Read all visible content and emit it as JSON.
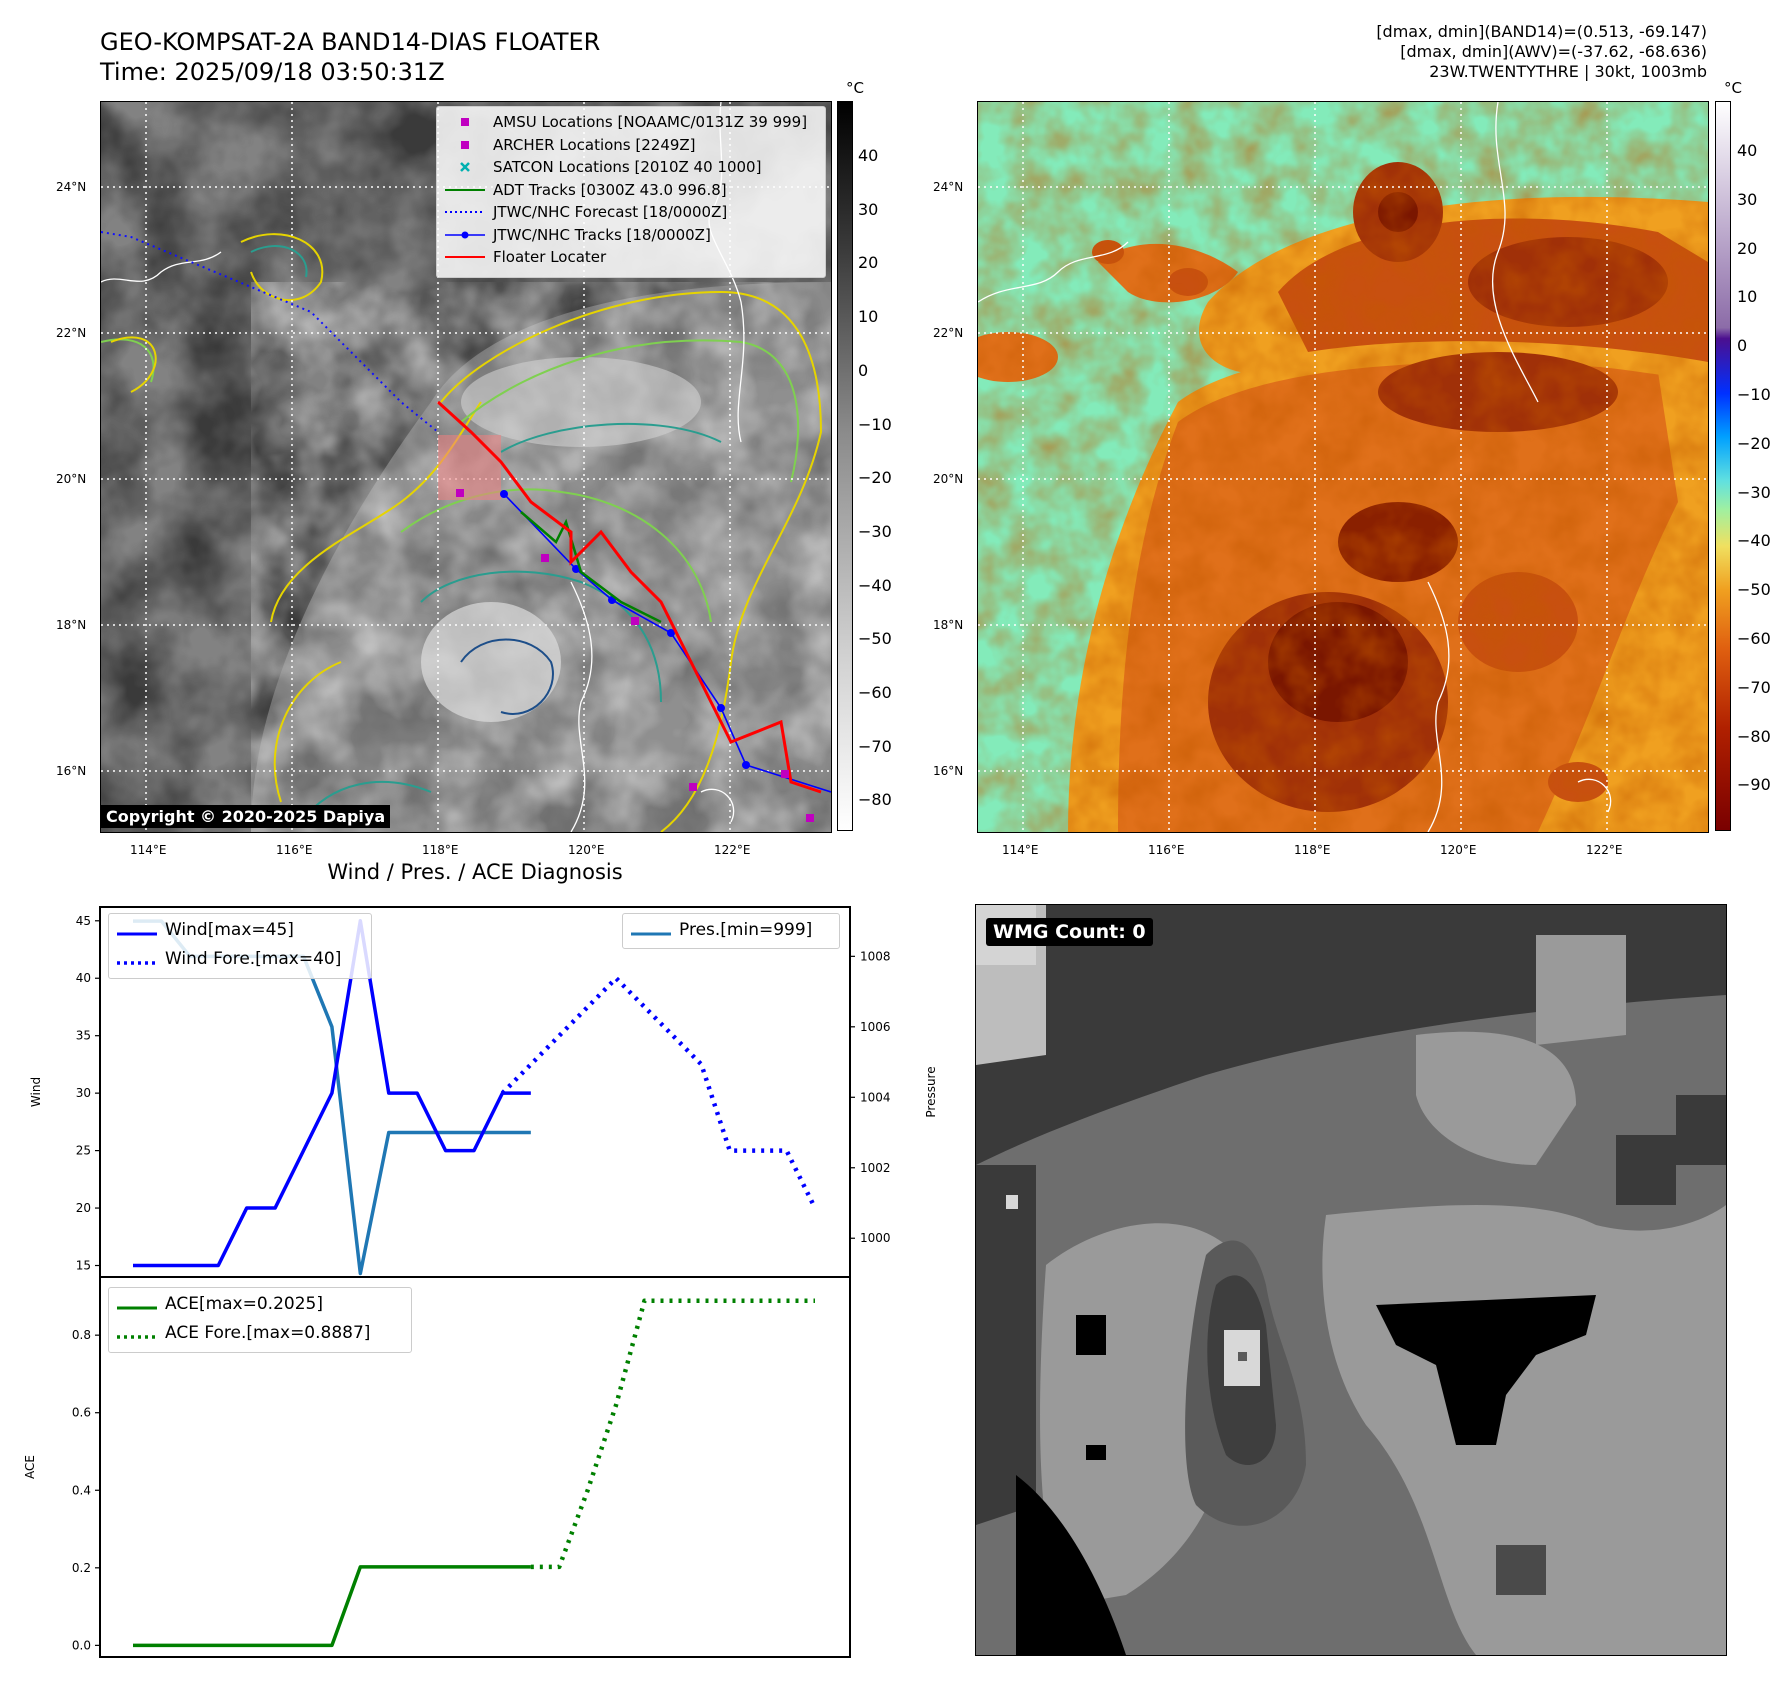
{
  "header": {
    "title_line1": "GEO-KOMPSAT-2A BAND14-DIAS FLOATER",
    "title_line2": "Time: 2025/09/18 03:50:31Z",
    "info_line1": "[dmax, dmin](BAND14)=(0.513, -69.147)",
    "info_line2": "[dmax, dmin](AWV)=(-37.62, -68.636)",
    "info_line3": "23W.TWENTYTHRE | 30kt, 1003mb"
  },
  "map_left": {
    "unit": "°C",
    "lat_labels": [
      "24°N",
      "22°N",
      "20°N",
      "18°N",
      "16°N"
    ],
    "lon_labels": [
      "114°E",
      "116°E",
      "118°E",
      "120°E",
      "122°E"
    ],
    "colorbar_ticks": [
      "40",
      "30",
      "20",
      "10",
      "0",
      "−10",
      "−20",
      "−30",
      "−40",
      "−50",
      "−60",
      "−70",
      "−80"
    ],
    "copyright": "Copyright © 2020-2025 Dapiya",
    "legend": [
      {
        "label": "AMSU Locations [NOAAMC/0131Z 39 999]",
        "color": "#c000c0",
        "symbol": "square"
      },
      {
        "label": "ARCHER Locations [2249Z]",
        "color": "#c000c0",
        "symbol": "square"
      },
      {
        "label": "SATCON Locations [2010Z 40 1000]",
        "color": "#00b0b0",
        "symbol": "x"
      },
      {
        "label": "ADT Tracks [0300Z 43.0 996.8]",
        "color": "#008000",
        "symbol": "line"
      },
      {
        "label": "JTWC/NHC Forecast [18/0000Z]",
        "color": "#0000ff",
        "symbol": "dotted"
      },
      {
        "label": "JTWC/NHC Tracks [18/0000Z]",
        "color": "#0000ff",
        "symbol": "line-dot"
      },
      {
        "label": "Floater Locater",
        "color": "#ff0000",
        "symbol": "line"
      }
    ]
  },
  "map_right": {
    "unit": "°C",
    "lat_labels": [
      "24°N",
      "22°N",
      "20°N",
      "18°N",
      "16°N"
    ],
    "lon_labels": [
      "114°E",
      "116°E",
      "118°E",
      "120°E",
      "122°E"
    ],
    "colorbar_ticks": [
      "40",
      "30",
      "20",
      "10",
      "0",
      "−10",
      "−20",
      "−30",
      "−40",
      "−50",
      "−60",
      "−70",
      "−80",
      "−90"
    ]
  },
  "wmg": {
    "label": "WMG Count: 0"
  },
  "colors": {
    "wind": "#0000ff",
    "pressure": "#1f77b4",
    "ace": "#008000"
  },
  "chart_data": [
    {
      "type": "line",
      "title": "Wind / Pres. / ACE Diagnosis",
      "ylabel": "Wind",
      "ylabel_right": "Pressure",
      "ylim": [
        14,
        46.2
      ],
      "ylim_right": [
        998.9,
        1009.4
      ],
      "x": [
        0,
        1,
        2,
        3,
        4,
        5,
        6,
        7,
        8,
        9,
        10,
        11,
        12,
        13,
        14,
        15,
        16,
        17,
        18,
        19,
        20,
        21,
        22,
        23,
        24
      ],
      "yticks": [
        "15",
        "20",
        "25",
        "30",
        "35",
        "40",
        "45"
      ],
      "yticks_right": [
        "1000",
        "1002",
        "1004",
        "1006",
        "1008"
      ],
      "legend": [
        "Wind[max=45]",
        "Wind Fore.[max=40]"
      ],
      "legend_right": [
        "Pres.[min=999]"
      ],
      "series": [
        {
          "name": "Wind[max=45]",
          "style": "solid",
          "axis": "left",
          "x": [
            0,
            1,
            2,
            3,
            4,
            5,
            6,
            7,
            8,
            9,
            10,
            11,
            12,
            13,
            14
          ],
          "values": [
            15,
            15,
            15,
            15,
            20,
            20,
            25,
            30,
            45,
            30,
            30,
            25,
            25,
            30,
            30
          ]
        },
        {
          "name": "Wind Fore.[max=40]",
          "style": "dotted",
          "axis": "left",
          "x": [
            13,
            14,
            15,
            16,
            17,
            18,
            19,
            20,
            21,
            22,
            23,
            24
          ],
          "values": [
            30,
            32.5,
            35,
            37.5,
            40,
            37.5,
            35,
            32.5,
            25,
            25,
            25,
            20
          ]
        },
        {
          "name": "Pres.[min=999]",
          "style": "solid",
          "axis": "right",
          "x": [
            0,
            1,
            2,
            3,
            4,
            5,
            6,
            7,
            8,
            9,
            10,
            11,
            12,
            13,
            14
          ],
          "values": [
            1009,
            1009,
            1008,
            1008,
            1008,
            1008,
            1008,
            1006,
            999,
            1003,
            1003,
            1003,
            1003,
            1003,
            1003
          ]
        }
      ]
    },
    {
      "type": "line",
      "ylabel": "ACE",
      "ylim": [
        -0.03,
        0.95
      ],
      "yticks": [
        "0.0",
        "0.2",
        "0.4",
        "0.6",
        "0.8"
      ],
      "legend": [
        "ACE[max=0.2025]",
        "ACE Fore.[max=0.8887]"
      ],
      "series": [
        {
          "name": "ACE[max=0.2025]",
          "style": "solid",
          "x": [
            0,
            1,
            2,
            3,
            4,
            5,
            6,
            7,
            8,
            9,
            10,
            11,
            12,
            13,
            14
          ],
          "values": [
            0,
            0,
            0,
            0,
            0,
            0,
            0,
            0,
            0.2025,
            0.2025,
            0.2025,
            0.2025,
            0.2025,
            0.2025,
            0.2025
          ]
        },
        {
          "name": "ACE Fore.[max=0.8887]",
          "style": "dotted",
          "x": [
            14,
            15,
            16,
            17,
            18,
            19,
            20,
            21,
            22,
            23,
            24
          ],
          "values": [
            0.2025,
            0.2025,
            0.4,
            0.62,
            0.8887,
            0.8887,
            0.8887,
            0.8887,
            0.8887,
            0.8887,
            0.8887
          ]
        }
      ]
    }
  ]
}
